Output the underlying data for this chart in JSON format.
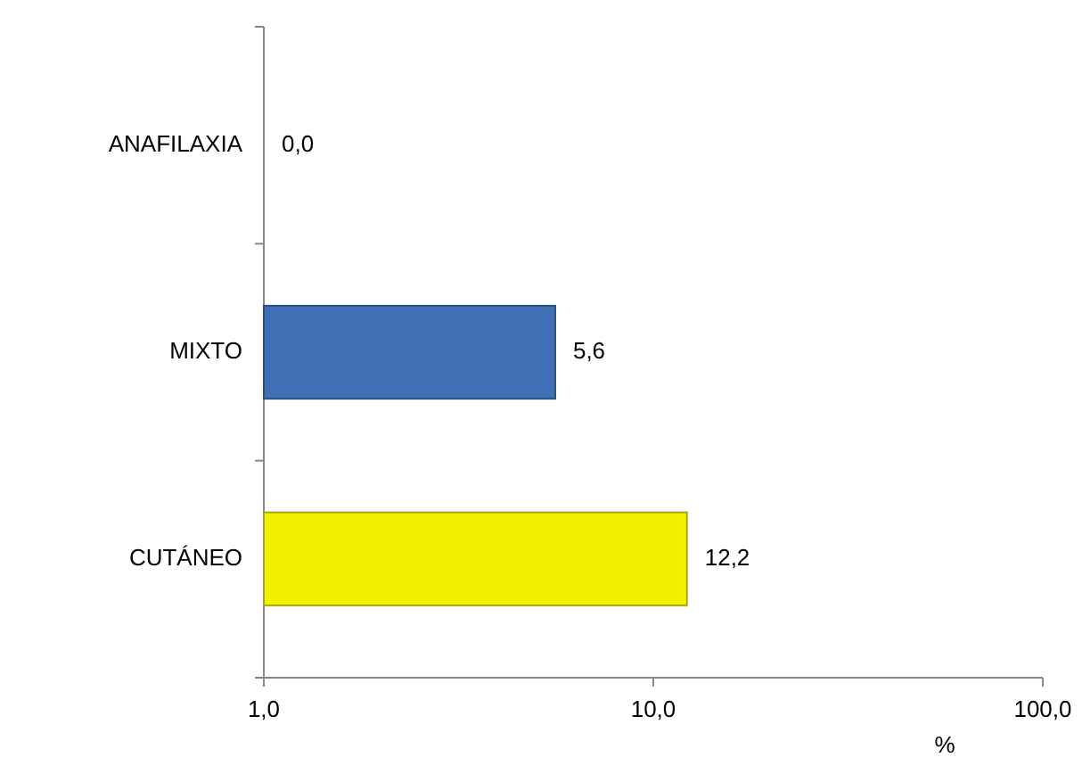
{
  "chart_data": {
    "type": "bar",
    "orientation": "horizontal",
    "categories": [
      "ANAFILAXIA",
      "MIXTO",
      "CUTÁNEO"
    ],
    "values": [
      null,
      5.6,
      12.2
    ],
    "colors": [
      "#3f6fb5",
      "#3f6fb5",
      "#f2f200"
    ],
    "value_labels": [
      "0,0",
      "5,6",
      "12,2"
    ],
    "xlabel": "%",
    "log": "x",
    "xlim": [
      1,
      100
    ],
    "xticks": [
      {
        "value": 1,
        "label": "1,0"
      },
      {
        "value": 10,
        "label": "10,0"
      },
      {
        "value": 100,
        "label": "100,0"
      }
    ],
    "grid": false
  }
}
